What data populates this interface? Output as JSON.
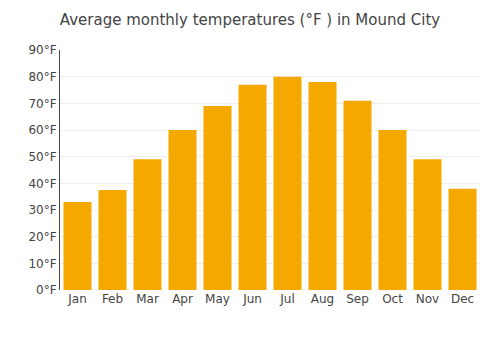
{
  "chart_data": {
    "type": "bar",
    "title": "Average monthly temperatures (°F ) in Mound City",
    "categories": [
      "Jan",
      "Feb",
      "Mar",
      "Apr",
      "May",
      "Jun",
      "Jul",
      "Aug",
      "Sep",
      "Oct",
      "Nov",
      "Dec"
    ],
    "values": [
      33,
      37.5,
      49,
      60,
      69,
      77,
      80,
      78,
      71,
      60,
      49,
      38
    ],
    "color": "#F5A800",
    "ylim": [
      0,
      90
    ],
    "yticks": [
      {
        "value": 0,
        "label": "0°F"
      },
      {
        "value": 10,
        "label": "10°F"
      },
      {
        "value": 20,
        "label": "20°F"
      },
      {
        "value": 30,
        "label": "30°F"
      },
      {
        "value": 40,
        "label": "40°F"
      },
      {
        "value": 50,
        "label": "50°F"
      },
      {
        "value": 60,
        "label": "60°F"
      },
      {
        "value": 70,
        "label": "70°F"
      },
      {
        "value": 80,
        "label": "80°F"
      },
      {
        "value": 90,
        "label": "90°F"
      }
    ],
    "grid": true
  }
}
